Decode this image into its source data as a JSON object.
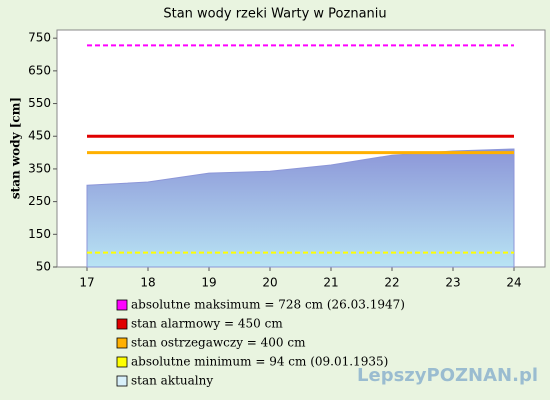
{
  "chart_data": {
    "type": "area",
    "title": "Stan wody rzeki Warty w Poznaniu",
    "y_label": "stan wody [cm]",
    "categories": [
      "17",
      "18",
      "19",
      "20",
      "21",
      "22",
      "23",
      "24"
    ],
    "series": [
      {
        "name": "stan aktualny",
        "color": "#8c96d8",
        "values": [
          300,
          310,
          337,
          343,
          362,
          392,
          405,
          411
        ]
      }
    ],
    "thresholds": [
      {
        "name": "absolutne maksimum = 728 cm (26.03.1947)",
        "value": 728,
        "color": "#ff00ff",
        "dashed": true
      },
      {
        "name": "stan alarmowy = 450 cm",
        "value": 450,
        "color": "#e00000",
        "dashed": false
      },
      {
        "name": "stan ostrzegawczy = 400 cm",
        "value": 400,
        "color": "#ffb000",
        "dashed": false
      },
      {
        "name": "absolutne minimum = 94 cm (09.01.1935)",
        "value": 94,
        "color": "#ffff00",
        "dashed": true
      }
    ],
    "ylim": [
      50,
      775
    ],
    "yticks": [
      50,
      150,
      250,
      350,
      450,
      550,
      650,
      750
    ],
    "watermark": "LepszyPOZNAN.pl"
  }
}
